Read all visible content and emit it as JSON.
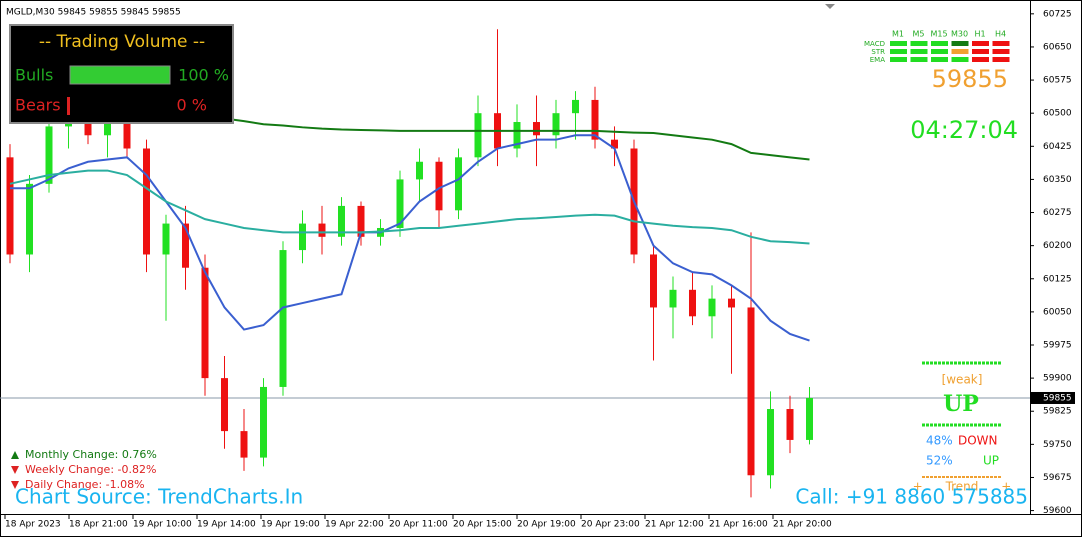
{
  "header": "MGLD,M30  59845 59855 59845 59855",
  "chart_data": {
    "type": "candlestick",
    "ylim": [
      59590,
      60745
    ],
    "yticks": [
      60725,
      60650,
      60575,
      60500,
      60425,
      60350,
      60275,
      60200,
      60125,
      60050,
      59975,
      59900,
      59825,
      59750,
      59675,
      59600
    ],
    "x_labels": [
      "18 Apr 2023",
      "18 Apr 21:00",
      "19 Apr 10:00",
      "19 Apr 14:00",
      "19 Apr 19:00",
      "19 Apr 22:00",
      "20 Apr 11:00",
      "20 Apr 15:00",
      "20 Apr 19:00",
      "20 Apr 23:00",
      "21 Apr 12:00",
      "21 Apr 16:00",
      "21 Apr 20:00"
    ],
    "up_color": "#22e022",
    "down_color": "#ee1111",
    "current_price": 59855,
    "ohlc": [
      [
        60400,
        60430,
        60160,
        60180
      ],
      [
        60180,
        60360,
        60140,
        60340
      ],
      [
        60340,
        60490,
        60320,
        60470
      ],
      [
        60470,
        60530,
        60420,
        60500
      ],
      [
        60500,
        60540,
        60430,
        60450
      ],
      [
        60450,
        60510,
        60400,
        60480
      ],
      [
        60480,
        60520,
        60400,
        60420
      ],
      [
        60420,
        60440,
        60140,
        60180
      ],
      [
        60180,
        60270,
        60030,
        60250
      ],
      [
        60250,
        60290,
        60100,
        60150
      ],
      [
        60150,
        60180,
        59860,
        59900
      ],
      [
        59900,
        59950,
        59740,
        59780
      ],
      [
        59780,
        59830,
        59690,
        59720
      ],
      [
        59720,
        59900,
        59700,
        59880
      ],
      [
        59880,
        60210,
        59860,
        60190
      ],
      [
        60190,
        60280,
        60160,
        60250
      ],
      [
        60250,
        60290,
        60180,
        60220
      ],
      [
        60220,
        60310,
        60200,
        60290
      ],
      [
        60290,
        60300,
        60200,
        60220
      ],
      [
        60220,
        60260,
        60200,
        60240
      ],
      [
        60240,
        60370,
        60220,
        60350
      ],
      [
        60350,
        60420,
        60300,
        60390
      ],
      [
        60390,
        60400,
        60240,
        60280
      ],
      [
        60280,
        60420,
        60260,
        60400
      ],
      [
        60400,
        60540,
        60380,
        60500
      ],
      [
        60500,
        60690,
        60380,
        60420
      ],
      [
        60420,
        60520,
        60400,
        60480
      ],
      [
        60480,
        60540,
        60380,
        60450
      ],
      [
        60450,
        60530,
        60420,
        60500
      ],
      [
        60500,
        60550,
        60440,
        60530
      ],
      [
        60530,
        60560,
        60420,
        60440
      ],
      [
        60440,
        60470,
        60380,
        60420
      ],
      [
        60420,
        60440,
        60160,
        60180
      ],
      [
        60180,
        60200,
        59940,
        60060
      ],
      [
        60060,
        60130,
        59990,
        60100
      ],
      [
        60100,
        60140,
        60020,
        60040
      ],
      [
        60040,
        60110,
        59990,
        60080
      ],
      [
        60080,
        60110,
        59910,
        60060
      ],
      [
        60060,
        60230,
        59630,
        59680
      ],
      [
        59680,
        59870,
        59650,
        59830
      ],
      [
        59830,
        59860,
        59730,
        59760
      ],
      [
        59760,
        59880,
        59750,
        59855
      ]
    ],
    "lines": [
      {
        "color": "#3a5fd0",
        "values": [
          60330,
          60330,
          60350,
          60375,
          60390,
          60395,
          60400,
          60360,
          60300,
          60240,
          60140,
          60060,
          60010,
          60020,
          60060,
          60070,
          60080,
          60090,
          60230,
          60230,
          60250,
          60300,
          60330,
          60350,
          60390,
          60420,
          60430,
          60440,
          60440,
          60450,
          60450,
          60420,
          60300,
          60200,
          60160,
          60140,
          60135,
          60110,
          60080,
          60030,
          60000,
          59985
        ]
      },
      {
        "color": "#2aaea0",
        "values": [
          60340,
          60350,
          60360,
          60365,
          60370,
          60370,
          60360,
          60330,
          60300,
          60280,
          60260,
          60250,
          60240,
          60235,
          60230,
          60230,
          60230,
          60230,
          60230,
          60232,
          60235,
          60240,
          60240,
          60245,
          60250,
          60255,
          60260,
          60262,
          60265,
          60268,
          60270,
          60268,
          60255,
          60250,
          60245,
          60242,
          60240,
          60235,
          60220,
          60210,
          60208,
          60205
        ]
      },
      {
        "color": "#137a13",
        "values": [
          null,
          null,
          null,
          null,
          null,
          null,
          60500,
          60495,
          60490,
          60490,
          60490,
          60488,
          60482,
          60475,
          60472,
          60468,
          60465,
          60463,
          60462,
          60461,
          60460,
          60460,
          60460,
          60460,
          60460,
          60460,
          60460,
          60460,
          60460,
          60460,
          60460,
          60458,
          60456,
          60455,
          60450,
          60445,
          60440,
          60430,
          60410,
          60405,
          60400,
          60395
        ]
      }
    ]
  },
  "volume_panel": {
    "title": "-- Trading Volume --",
    "bulls": {
      "label": "Bulls",
      "value": 100,
      "value_label": "100 %"
    },
    "bears": {
      "label": "Bears",
      "value": 0,
      "value_label": "0 %"
    }
  },
  "signal_panel": {
    "timeframes": [
      "M1",
      "M5",
      "M15",
      "M30",
      "H1",
      "H4"
    ],
    "rows": [
      {
        "label": "MACD",
        "colors": [
          "#22dd22",
          "#22dd22",
          "#22dd22",
          "#137a13",
          "#ee1111",
          "#ee1111"
        ]
      },
      {
        "label": "STR",
        "colors": [
          "#22dd22",
          "#22dd22",
          "#22dd22",
          "#f0a030",
          "#ee1111",
          "#ee1111"
        ]
      },
      {
        "label": "EMA",
        "colors": [
          "#22dd22",
          "#22dd22",
          "#22dd22",
          "#22dd22",
          "#ee1111",
          "#ee1111"
        ]
      }
    ],
    "price": "59855",
    "timer": "04:27:04",
    "strength": "[weak]",
    "direction": "UP",
    "down_pct": "48%",
    "down_label": "DOWN",
    "up_pct": "52%",
    "up_label": "UP",
    "trend": "+      Trend      +"
  },
  "changes": [
    "Monthly Change: 0.76%",
    "Weekly Change: -0.82%",
    "Daily Change: -1.08%"
  ],
  "footer": {
    "source": "Chart Source: TrendCharts.In",
    "call": "Call: +91 8860 575885"
  }
}
